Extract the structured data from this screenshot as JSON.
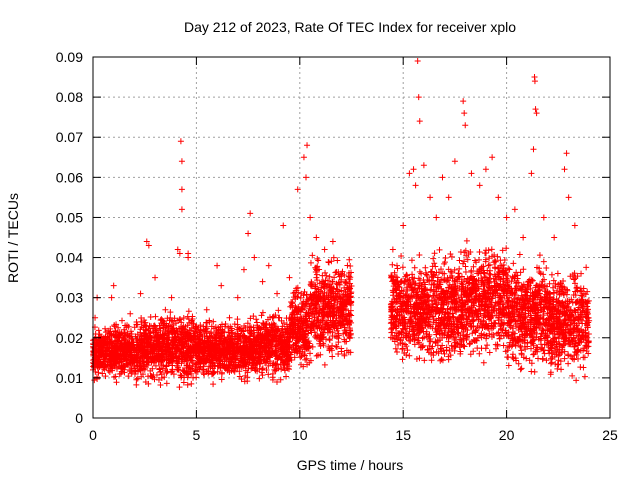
{
  "chart_data": {
    "type": "scatter",
    "title": "Day 212 of 2023, Rate Of TEC Index for receiver xplo",
    "xlabel": "GPS time / hours",
    "ylabel": "ROTI / TECUs",
    "xlim": [
      0,
      25
    ],
    "ylim": [
      0,
      0.09
    ],
    "xticks": [
      0,
      5,
      10,
      15,
      20,
      25
    ],
    "xtick_labels": [
      "0",
      "5",
      "10",
      "15",
      "20",
      "25"
    ],
    "yticks": [
      0,
      0.01,
      0.02,
      0.03,
      0.04,
      0.05,
      0.06,
      0.07,
      0.08,
      0.09
    ],
    "ytick_labels": [
      "0",
      "0.01",
      "0.02",
      "0.03",
      "0.04",
      "0.05",
      "0.06",
      "0.07",
      "0.08",
      "0.09"
    ],
    "grid": true,
    "marker": "+",
    "color": "#ff0000",
    "series": [
      {
        "points": [
          [
            0.0,
            0.012
          ],
          [
            0.1,
            0.025
          ],
          [
            0.2,
            0.03
          ],
          [
            0.3,
            0.018
          ],
          [
            0.5,
            0.014
          ],
          [
            0.7,
            0.02
          ],
          [
            0.9,
            0.03
          ],
          [
            1.0,
            0.033
          ],
          [
            1.2,
            0.016
          ],
          [
            1.5,
            0.022
          ],
          [
            1.8,
            0.026
          ],
          [
            2.0,
            0.013
          ],
          [
            2.3,
            0.031
          ],
          [
            2.6,
            0.044
          ],
          [
            2.7,
            0.043
          ],
          [
            3.0,
            0.035
          ],
          [
            3.2,
            0.02
          ],
          [
            3.5,
            0.027
          ],
          [
            3.8,
            0.03
          ],
          [
            4.1,
            0.042
          ],
          [
            4.2,
            0.041
          ],
          [
            4.25,
            0.069
          ],
          [
            4.3,
            0.064
          ],
          [
            4.3,
            0.057
          ],
          [
            4.3,
            0.052
          ],
          [
            4.6,
            0.041
          ],
          [
            4.6,
            0.04
          ],
          [
            5.0,
            0.022
          ],
          [
            5.5,
            0.027
          ],
          [
            6.0,
            0.038
          ],
          [
            6.2,
            0.033
          ],
          [
            6.6,
            0.025
          ],
          [
            7.0,
            0.03
          ],
          [
            7.3,
            0.037
          ],
          [
            7.5,
            0.046
          ],
          [
            7.6,
            0.051
          ],
          [
            7.8,
            0.04
          ],
          [
            8.2,
            0.034
          ],
          [
            8.5,
            0.038
          ],
          [
            8.9,
            0.031
          ],
          [
            9.2,
            0.048
          ],
          [
            9.5,
            0.035
          ],
          [
            9.9,
            0.057
          ],
          [
            10.2,
            0.065
          ],
          [
            10.3,
            0.06
          ],
          [
            10.35,
            0.068
          ],
          [
            10.5,
            0.05
          ],
          [
            10.8,
            0.045
          ],
          [
            11.2,
            0.042
          ],
          [
            11.6,
            0.044
          ],
          [
            12.0,
            0.036
          ],
          [
            12.3,
            0.032
          ],
          [
            14.5,
            0.042
          ],
          [
            14.7,
            0.038
          ],
          [
            15.0,
            0.048
          ],
          [
            15.3,
            0.061
          ],
          [
            15.5,
            0.062
          ],
          [
            15.6,
            0.058
          ],
          [
            15.7,
            0.089
          ],
          [
            15.75,
            0.08
          ],
          [
            15.8,
            0.074
          ],
          [
            16.0,
            0.063
          ],
          [
            16.3,
            0.055
          ],
          [
            16.6,
            0.05
          ],
          [
            16.9,
            0.06
          ],
          [
            17.2,
            0.055
          ],
          [
            17.5,
            0.064
          ],
          [
            17.9,
            0.079
          ],
          [
            17.95,
            0.076
          ],
          [
            18.0,
            0.073
          ],
          [
            18.3,
            0.061
          ],
          [
            18.7,
            0.058
          ],
          [
            19.0,
            0.062
          ],
          [
            19.3,
            0.065
          ],
          [
            19.6,
            0.055
          ],
          [
            20.0,
            0.05
          ],
          [
            20.4,
            0.052
          ],
          [
            20.8,
            0.045
          ],
          [
            21.2,
            0.061
          ],
          [
            21.3,
            0.067
          ],
          [
            21.35,
            0.085
          ],
          [
            21.37,
            0.084
          ],
          [
            21.4,
            0.077
          ],
          [
            21.45,
            0.076
          ],
          [
            21.8,
            0.05
          ],
          [
            22.3,
            0.045
          ],
          [
            22.8,
            0.062
          ],
          [
            22.9,
            0.066
          ],
          [
            23.0,
            0.055
          ],
          [
            23.3,
            0.048
          ],
          [
            23.6,
            0.036
          ],
          [
            23.9,
            0.02
          ]
        ],
        "bands": [
          {
            "x_start": 0.0,
            "x_end": 2.0,
            "lo": 0.008,
            "hi": 0.025
          },
          {
            "x_start": 2.0,
            "x_end": 5.0,
            "lo": 0.007,
            "hi": 0.028
          },
          {
            "x_start": 5.0,
            "x_end": 7.5,
            "lo": 0.008,
            "hi": 0.026
          },
          {
            "x_start": 7.5,
            "x_end": 9.5,
            "lo": 0.008,
            "hi": 0.028
          },
          {
            "x_start": 9.5,
            "x_end": 10.5,
            "lo": 0.01,
            "hi": 0.036
          },
          {
            "x_start": 10.5,
            "x_end": 12.5,
            "lo": 0.012,
            "hi": 0.043
          },
          {
            "x_start": 14.4,
            "x_end": 16.0,
            "lo": 0.012,
            "hi": 0.042
          },
          {
            "x_start": 16.0,
            "x_end": 18.0,
            "lo": 0.01,
            "hi": 0.045
          },
          {
            "x_start": 18.0,
            "x_end": 20.0,
            "lo": 0.012,
            "hi": 0.046
          },
          {
            "x_start": 20.0,
            "x_end": 22.0,
            "lo": 0.009,
            "hi": 0.043
          },
          {
            "x_start": 22.0,
            "x_end": 24.0,
            "lo": 0.008,
            "hi": 0.04
          }
        ]
      }
    ]
  }
}
